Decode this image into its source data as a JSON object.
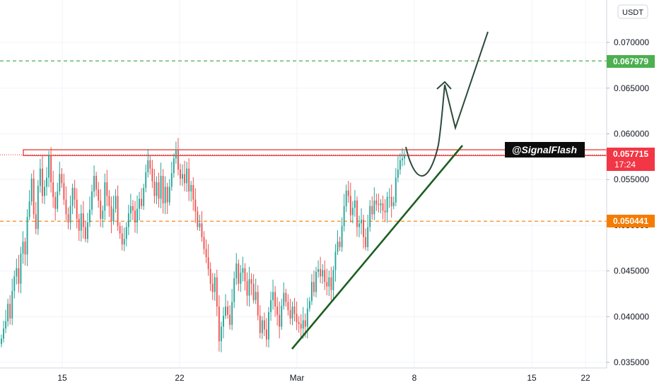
{
  "chart_data": {
    "type": "candlestick",
    "y_axis": {
      "currency_label": "USDT",
      "ticks": [
        "0.035000",
        "0.040000",
        "0.045000",
        "0.050000",
        "0.055000",
        "0.060000",
        "0.065000",
        "0.070000"
      ],
      "tick_values": [
        0.035,
        0.04,
        0.045,
        0.05,
        0.055,
        0.06,
        0.065,
        0.07
      ],
      "range": [
        0.0348,
        0.0737
      ]
    },
    "x_axis": {
      "ticks": [
        "15",
        "22",
        "Mar",
        "8",
        "15",
        "22"
      ]
    },
    "price_labels": {
      "green_level": "0.067979",
      "current_price": "0.057715",
      "countdown": "17:24",
      "orange_level": "0.050441"
    },
    "levels": {
      "green_dashed": 0.067979,
      "current_dotted": 0.057715,
      "orange_dashed": 0.050441,
      "resistance_zone": [
        0.05762,
        0.05826
      ]
    },
    "watermark": "@SignalFlash",
    "colors": {
      "up": "#26a69a",
      "down": "#ef5350",
      "green_level": "#4caf50",
      "orange_level": "#f57c00",
      "current_price": "#f23645",
      "zone": "#e53935",
      "trendline": "#1b5e20",
      "projection": "#2e4a3a",
      "grid": "#f0f3fa",
      "axis_text": "#131722"
    },
    "candles_close": [
      0.0376,
      0.0387,
      0.0395,
      0.0414,
      0.0398,
      0.0428,
      0.0444,
      0.0453,
      0.0436,
      0.0469,
      0.0482,
      0.0468,
      0.0509,
      0.0526,
      0.0551,
      0.0512,
      0.0496,
      0.0543,
      0.0562,
      0.0532,
      0.0542,
      0.0552,
      0.0577,
      0.0547,
      0.0531,
      0.0518,
      0.0537,
      0.0556,
      0.0546,
      0.0528,
      0.0512,
      0.0503,
      0.0521,
      0.0541,
      0.0528,
      0.0507,
      0.0494,
      0.0513,
      0.0498,
      0.0485,
      0.0503,
      0.0517,
      0.0537,
      0.0554,
      0.0539,
      0.0527,
      0.0507,
      0.0516,
      0.0547,
      0.0532,
      0.0521,
      0.0504,
      0.0518,
      0.0532,
      0.0499,
      0.0491,
      0.0479,
      0.0485,
      0.0498,
      0.0513,
      0.0521,
      0.0516,
      0.0503,
      0.0518,
      0.0529,
      0.0521,
      0.0541,
      0.0558,
      0.0571,
      0.0562,
      0.0548,
      0.0532,
      0.0547,
      0.0529,
      0.0554,
      0.0524,
      0.0542,
      0.0525,
      0.0542,
      0.0557,
      0.0573,
      0.0582,
      0.0561,
      0.0551,
      0.0556,
      0.0546,
      0.0562,
      0.0537,
      0.0544,
      0.0528,
      0.0515,
      0.0498,
      0.0502,
      0.0487,
      0.0474,
      0.0465,
      0.0452,
      0.0436,
      0.0427,
      0.0443,
      0.0411,
      0.0373,
      0.0389,
      0.0401,
      0.0411,
      0.0402,
      0.0391,
      0.0416,
      0.0442,
      0.0458,
      0.0436,
      0.0448,
      0.0453,
      0.0439,
      0.0423,
      0.0441,
      0.0436,
      0.0418,
      0.0427,
      0.0401,
      0.0382,
      0.0396,
      0.0386,
      0.0375,
      0.0405,
      0.0418,
      0.0427,
      0.0411,
      0.0402,
      0.0389,
      0.0412,
      0.0426,
      0.0416,
      0.0407,
      0.0398,
      0.0411,
      0.0403,
      0.0394,
      0.0392,
      0.0387,
      0.0396,
      0.0389,
      0.0409,
      0.0417,
      0.0438,
      0.0427,
      0.0449,
      0.0452,
      0.0444,
      0.0451,
      0.0438,
      0.0433,
      0.0443,
      0.0429,
      0.0451,
      0.0471,
      0.0482,
      0.0476,
      0.0499,
      0.0521,
      0.0538,
      0.0532,
      0.0511,
      0.0519,
      0.0527,
      0.0498,
      0.0502,
      0.0506,
      0.0487,
      0.0476,
      0.0498,
      0.0521,
      0.0512,
      0.0527,
      0.0523,
      0.0522,
      0.0524,
      0.0516,
      0.0514,
      0.0531,
      0.0531,
      0.0521,
      0.0525,
      0.0552,
      0.0561,
      0.0571,
      0.0573,
      0.0577
    ]
  }
}
